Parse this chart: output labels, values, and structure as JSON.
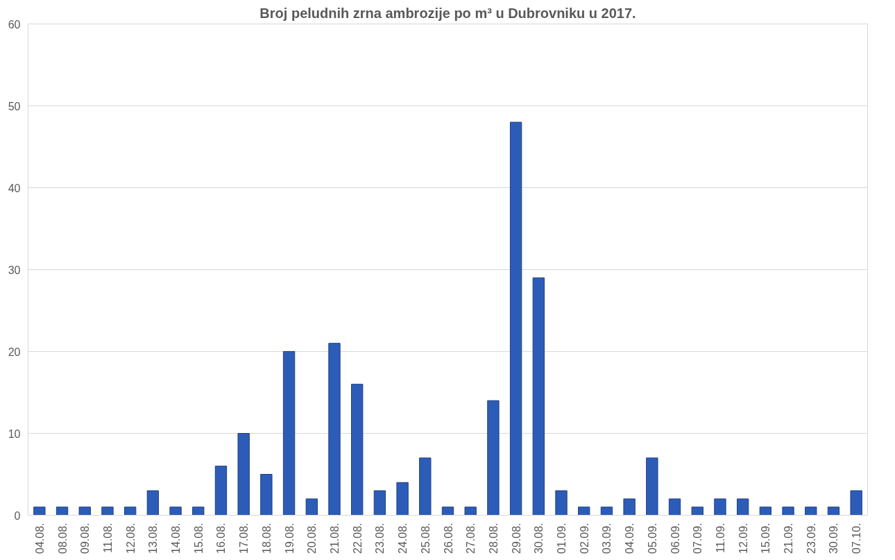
{
  "chart_data": {
    "type": "bar",
    "title": "Broj peludnih zrna ambrozije po m³ u Dubrovniku u 2017.",
    "categories": [
      "04.08.",
      "08.08.",
      "09.08.",
      "11.08.",
      "12.08.",
      "13.08.",
      "14.08.",
      "15.08.",
      "16.08.",
      "17.08.",
      "18.08.",
      "19.08.",
      "20.08.",
      "21.08.",
      "22.08.",
      "23.08.",
      "24.08.",
      "25.08.",
      "26.08.",
      "27.08.",
      "28.08.",
      "29.08.",
      "30.08.",
      "01.09.",
      "02.09.",
      "03.09.",
      "04.09.",
      "05.09.",
      "06.09.",
      "07.09.",
      "11.09.",
      "12.09.",
      "15.09.",
      "21.09.",
      "23.09.",
      "30.09.",
      "07.10."
    ],
    "values": [
      1,
      1,
      1,
      1,
      1,
      3,
      1,
      1,
      6,
      10,
      5,
      20,
      2,
      21,
      16,
      3,
      4,
      7,
      1,
      1,
      14,
      48,
      29,
      3,
      1,
      1,
      2,
      7,
      2,
      1,
      2,
      2,
      1,
      1,
      1,
      1,
      3
    ],
    "color": "#2d5cb8",
    "ylim": [
      0,
      60
    ],
    "yticks": [
      0,
      10,
      20,
      30,
      40,
      50,
      60
    ],
    "grid": "y"
  }
}
